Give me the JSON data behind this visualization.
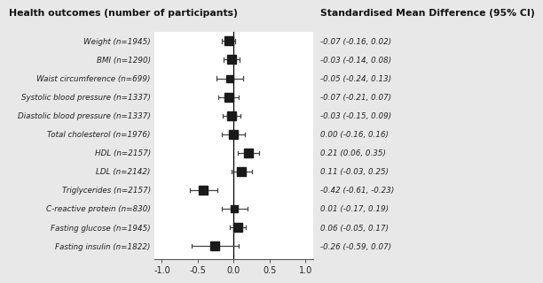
{
  "title_left": "Health outcomes (number of participants)",
  "title_right": "Standardised Mean Difference (95% CI)",
  "outcomes": [
    {
      "label": "Weight (n=1945)",
      "mean": -0.07,
      "ci_low": -0.16,
      "ci_high": 0.02,
      "ci_text": "-0.07 (-0.16, 0.02)",
      "n": 1945
    },
    {
      "label": "BMI (n=1290)",
      "mean": -0.03,
      "ci_low": -0.14,
      "ci_high": 0.08,
      "ci_text": "-0.03 (-0.14, 0.08)",
      "n": 1290
    },
    {
      "label": "Waist circumference (n=699)",
      "mean": -0.05,
      "ci_low": -0.24,
      "ci_high": 0.13,
      "ci_text": "-0.05 (-0.24, 0.13)",
      "n": 699
    },
    {
      "label": "Systolic blood pressure (n=1337)",
      "mean": -0.07,
      "ci_low": -0.21,
      "ci_high": 0.07,
      "ci_text": "-0.07 (-0.21, 0.07)",
      "n": 1337
    },
    {
      "label": "Diastolic blood pressure (n=1337)",
      "mean": -0.03,
      "ci_low": -0.15,
      "ci_high": 0.09,
      "ci_text": "-0.03 (-0.15, 0.09)",
      "n": 1337
    },
    {
      "label": "Total cholesterol (n=1976)",
      "mean": 0.0,
      "ci_low": -0.16,
      "ci_high": 0.16,
      "ci_text": "0.00 (-0.16, 0.16)",
      "n": 1976
    },
    {
      "label": "HDL (n=2157)",
      "mean": 0.21,
      "ci_low": 0.06,
      "ci_high": 0.35,
      "ci_text": "0.21 (0.06, 0.35)",
      "n": 2157
    },
    {
      "label": "LDL (n=2142)",
      "mean": 0.11,
      "ci_low": -0.03,
      "ci_high": 0.25,
      "ci_text": "0.11 (-0.03, 0.25)",
      "n": 2142
    },
    {
      "label": "Triglycerides (n=2157)",
      "mean": -0.42,
      "ci_low": -0.61,
      "ci_high": -0.23,
      "ci_text": "-0.42 (-0.61, -0.23)",
      "n": 2157
    },
    {
      "label": "C-reactive protein (n=830)",
      "mean": 0.01,
      "ci_low": -0.17,
      "ci_high": 0.19,
      "ci_text": "0.01 (-0.17, 0.19)",
      "n": 830
    },
    {
      "label": "Fasting glucose (n=1945)",
      "mean": 0.06,
      "ci_low": -0.05,
      "ci_high": 0.17,
      "ci_text": "0.06 (-0.05, 0.17)",
      "n": 1945
    },
    {
      "label": "Fasting insulin (n=1822)",
      "mean": -0.26,
      "ci_low": -0.59,
      "ci_high": 0.07,
      "ci_text": "-0.26 (-0.59, 0.07)",
      "n": 1822
    }
  ],
  "xlim": [
    -1.1,
    1.1
  ],
  "xticks": [
    -1.0,
    -0.5,
    0.0,
    0.5,
    1.0
  ],
  "xticklabels": [
    "-1.0",
    "-0.5",
    "0.0",
    "0.5",
    "1.0"
  ],
  "background_color": "#e8e8e8",
  "plot_bg_color": "#ffffff",
  "marker_color": "#1a1a1a",
  "line_color": "#444444",
  "text_color": "#222222",
  "vline_color": "#000000",
  "max_n": 2157,
  "min_marker_size": 3.5,
  "max_marker_size": 7.5
}
